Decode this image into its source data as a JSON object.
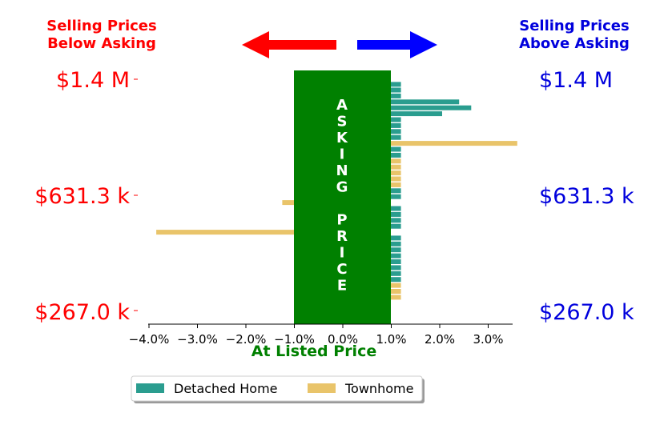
{
  "headers": {
    "left_line1": "Selling Prices",
    "left_line2": "Below Asking",
    "right_line1": "Selling Prices",
    "right_line2": "Above Asking"
  },
  "price_labels": {
    "left": [
      "$1.4 M",
      "$631.3 k",
      "$267.0 k"
    ],
    "right": [
      "$1.4 M",
      "$631.3 k",
      "$267.0 k"
    ]
  },
  "asking_box": {
    "letters": [
      "A",
      "S",
      "K",
      "I",
      "N",
      "G",
      "",
      "P",
      "R",
      "I",
      "C",
      "E"
    ]
  },
  "chart_data": {
    "type": "bar",
    "orientation": "horizontal",
    "xlabel": "At Listed Price",
    "xlim": [
      -4.5,
      3.5
    ],
    "xticks": [
      -4.0,
      -3.0,
      -2.0,
      -1.0,
      0.0,
      1.0,
      2.0,
      3.0
    ],
    "xtick_labels": [
      "−4.0%",
      "−3.0%",
      "−2.0%",
      "−1.0%",
      "0.0%",
      "1.0%",
      "2.0%",
      "3.0%"
    ],
    "ylim": [
      267.0,
      1400.0
    ],
    "y_unit": "thousands of dollars",
    "yticks": [
      1400.0,
      631.3,
      267.0
    ],
    "colors": {
      "Detached Home": "#2a9d8f",
      "Townhome": "#e9c46a",
      "asking_box": "#008000",
      "left_arrow": "#ff0000",
      "right_arrow": "#0000ff",
      "left_text": "#ff0000",
      "right_text": "#0000dd",
      "xlabel": "#008000"
    },
    "legend": {
      "entries": [
        "Detached Home",
        "Townhome"
      ],
      "placement": "bottom-center"
    },
    "bars": [
      {
        "price": 1375,
        "pct": 1.2,
        "type": "Detached Home"
      },
      {
        "price": 1347,
        "pct": 1.2,
        "type": "Detached Home"
      },
      {
        "price": 1318,
        "pct": 1.2,
        "type": "Detached Home"
      },
      {
        "price": 1289,
        "pct": 2.4,
        "type": "Detached Home"
      },
      {
        "price": 1260,
        "pct": 2.65,
        "type": "Detached Home"
      },
      {
        "price": 1231,
        "pct": 2.05,
        "type": "Detached Home"
      },
      {
        "price": 1202,
        "pct": 1.2,
        "type": "Detached Home"
      },
      {
        "price": 1173,
        "pct": 1.2,
        "type": "Detached Home"
      },
      {
        "price": 1144,
        "pct": 1.2,
        "type": "Detached Home"
      },
      {
        "price": 1115,
        "pct": 1.2,
        "type": "Detached Home"
      },
      {
        "price": 1086,
        "pct": 3.6,
        "type": "Townhome"
      },
      {
        "price": 1057,
        "pct": 1.2,
        "type": "Detached Home"
      },
      {
        "price": 1028,
        "pct": 1.2,
        "type": "Detached Home"
      },
      {
        "price": 999,
        "pct": 1.2,
        "type": "Townhome"
      },
      {
        "price": 970,
        "pct": 1.2,
        "type": "Townhome"
      },
      {
        "price": 941,
        "pct": 1.2,
        "type": "Townhome"
      },
      {
        "price": 912,
        "pct": 1.2,
        "type": "Townhome"
      },
      {
        "price": 883,
        "pct": 1.2,
        "type": "Townhome"
      },
      {
        "price": 854,
        "pct": 1.2,
        "type": "Detached Home"
      },
      {
        "price": 825,
        "pct": 1.2,
        "type": "Detached Home"
      },
      {
        "price": 796,
        "pct": -1.25,
        "type": "Townhome"
      },
      {
        "price": 767,
        "pct": 1.2,
        "type": "Detached Home"
      },
      {
        "price": 738,
        "pct": 1.2,
        "type": "Detached Home"
      },
      {
        "price": 709,
        "pct": 1.2,
        "type": "Detached Home"
      },
      {
        "price": 680,
        "pct": 1.2,
        "type": "Detached Home"
      },
      {
        "price": 651,
        "pct": -3.85,
        "type": "Townhome"
      },
      {
        "price": 622,
        "pct": 1.2,
        "type": "Detached Home"
      },
      {
        "price": 593,
        "pct": 1.2,
        "type": "Detached Home"
      },
      {
        "price": 564,
        "pct": 1.2,
        "type": "Detached Home"
      },
      {
        "price": 535,
        "pct": 1.2,
        "type": "Detached Home"
      },
      {
        "price": 506,
        "pct": 1.2,
        "type": "Detached Home"
      },
      {
        "price": 477,
        "pct": 1.2,
        "type": "Detached Home"
      },
      {
        "price": 448,
        "pct": 1.2,
        "type": "Detached Home"
      },
      {
        "price": 419,
        "pct": 1.2,
        "type": "Detached Home"
      },
      {
        "price": 390,
        "pct": 1.2,
        "type": "Townhome"
      },
      {
        "price": 361,
        "pct": 1.2,
        "type": "Townhome"
      },
      {
        "price": 332,
        "pct": 1.2,
        "type": "Townhome"
      }
    ]
  }
}
